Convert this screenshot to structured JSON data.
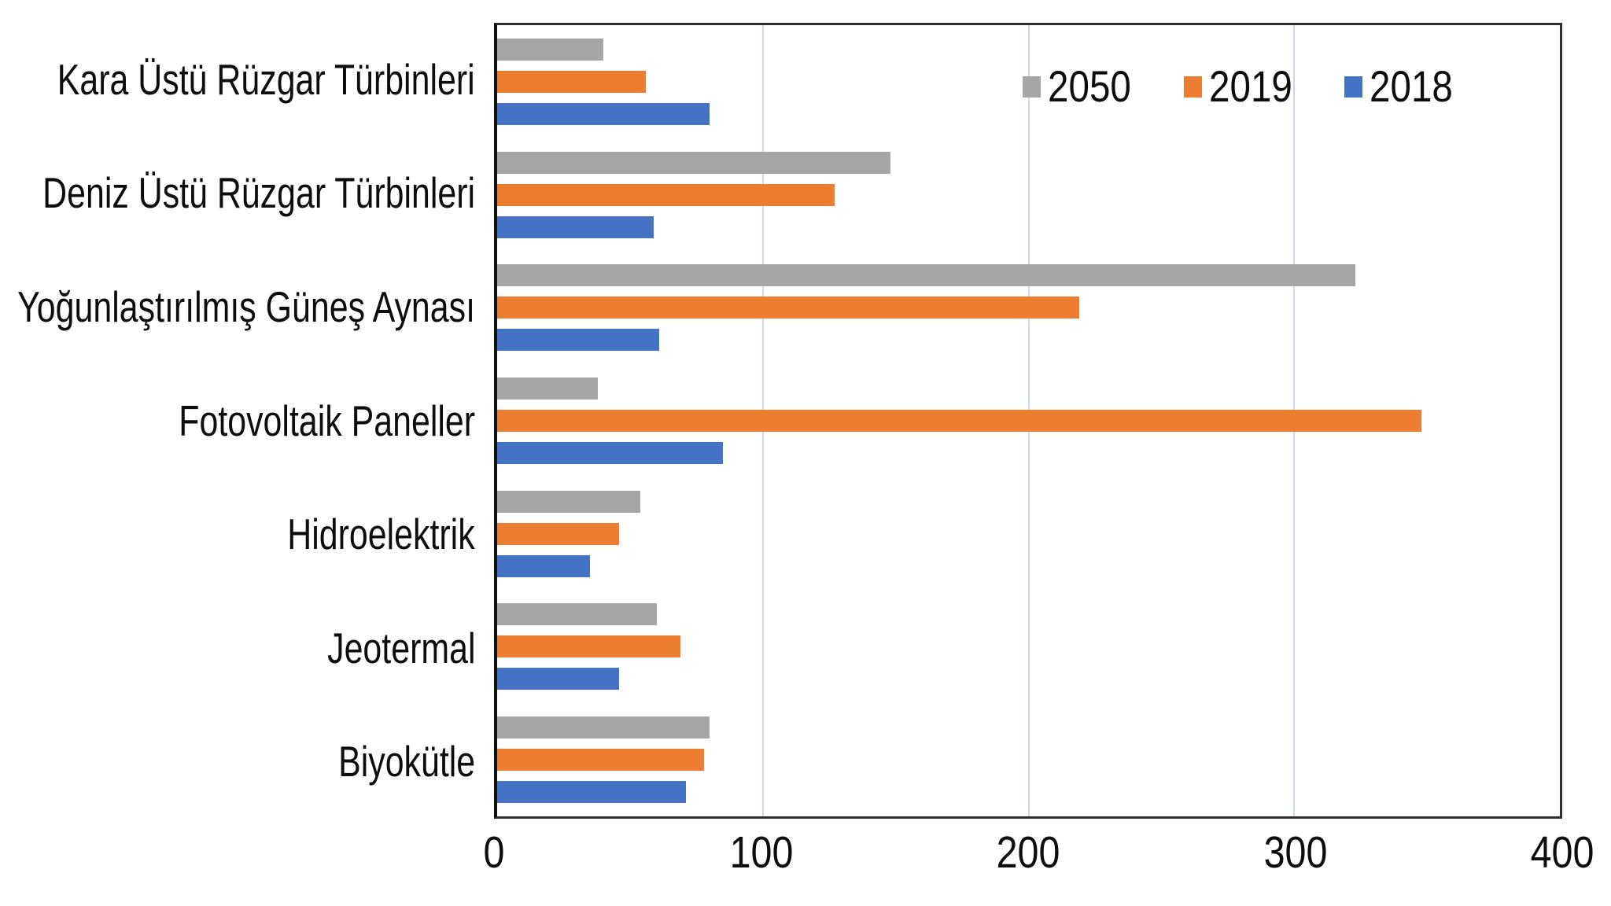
{
  "chart_data": {
    "type": "bar",
    "orientation": "horizontal",
    "categories": [
      "Kara Üstü Rüzgar Türbinleri",
      "Deniz Üstü Rüzgar Türbinleri",
      "Yoğunlaştırılmış Güneş Aynası",
      "Fotovoltaik Paneller",
      "Hidroelektrik",
      "Jeotermal",
      "Biyokütle"
    ],
    "series": [
      {
        "name": "2050",
        "color": "#a6a6a6",
        "values": [
          40,
          148,
          323,
          38,
          54,
          60,
          80
        ]
      },
      {
        "name": "2019",
        "color": "#ed7d31",
        "values": [
          56,
          127,
          219,
          348,
          46,
          69,
          78
        ]
      },
      {
        "name": "2018",
        "color": "#4472c4",
        "values": [
          80,
          59,
          61,
          85,
          35,
          46,
          71
        ]
      }
    ],
    "xlim": [
      0,
      400
    ],
    "x_ticks": [
      0,
      100,
      200,
      300,
      400
    ],
    "grid": true,
    "legend_position": "top-right",
    "legend_entries": [
      "2050",
      "2019",
      "2018"
    ]
  },
  "style_colors": {
    "gridline": "#ccd8ec",
    "plot_border": "#2e2e2e",
    "axis_line": "#101010",
    "text": "#0d0d0d",
    "background": "#ffffff"
  }
}
